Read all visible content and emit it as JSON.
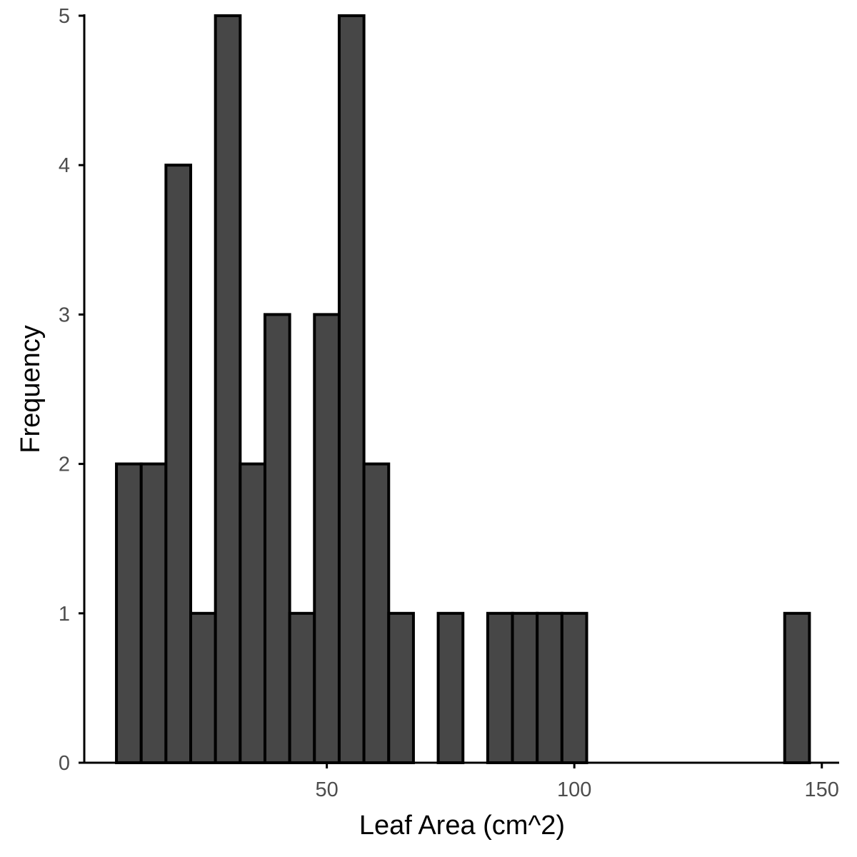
{
  "chart_data": {
    "type": "bar",
    "subtype": "histogram",
    "title": "",
    "xlabel": "Leaf Area (cm^2)",
    "ylabel": "Frequency",
    "bin_width": 5,
    "bins": [
      {
        "start": 7.5,
        "end": 12.5,
        "count": 2
      },
      {
        "start": 12.5,
        "end": 17.5,
        "count": 2
      },
      {
        "start": 17.5,
        "end": 22.5,
        "count": 4
      },
      {
        "start": 22.5,
        "end": 27.5,
        "count": 1
      },
      {
        "start": 27.5,
        "end": 32.5,
        "count": 5
      },
      {
        "start": 32.5,
        "end": 37.5,
        "count": 2
      },
      {
        "start": 37.5,
        "end": 42.5,
        "count": 3
      },
      {
        "start": 42.5,
        "end": 47.5,
        "count": 1
      },
      {
        "start": 47.5,
        "end": 52.5,
        "count": 3
      },
      {
        "start": 52.5,
        "end": 57.5,
        "count": 5
      },
      {
        "start": 57.5,
        "end": 62.5,
        "count": 2
      },
      {
        "start": 62.5,
        "end": 67.5,
        "count": 1
      },
      {
        "start": 72.5,
        "end": 77.5,
        "count": 1
      },
      {
        "start": 82.5,
        "end": 87.5,
        "count": 1
      },
      {
        "start": 87.5,
        "end": 92.5,
        "count": 1
      },
      {
        "start": 92.5,
        "end": 97.5,
        "count": 1
      },
      {
        "start": 97.5,
        "end": 102.5,
        "count": 1
      },
      {
        "start": 142.5,
        "end": 147.5,
        "count": 1
      }
    ],
    "xlim": [
      1,
      153.5
    ],
    "ylim": [
      0,
      5
    ],
    "xticks": [
      50,
      100,
      150
    ],
    "yticks": [
      0,
      1,
      2,
      3,
      4,
      5
    ],
    "grid": false,
    "colors": {
      "bar_fill": "#474747",
      "bar_stroke": "#000000"
    }
  }
}
